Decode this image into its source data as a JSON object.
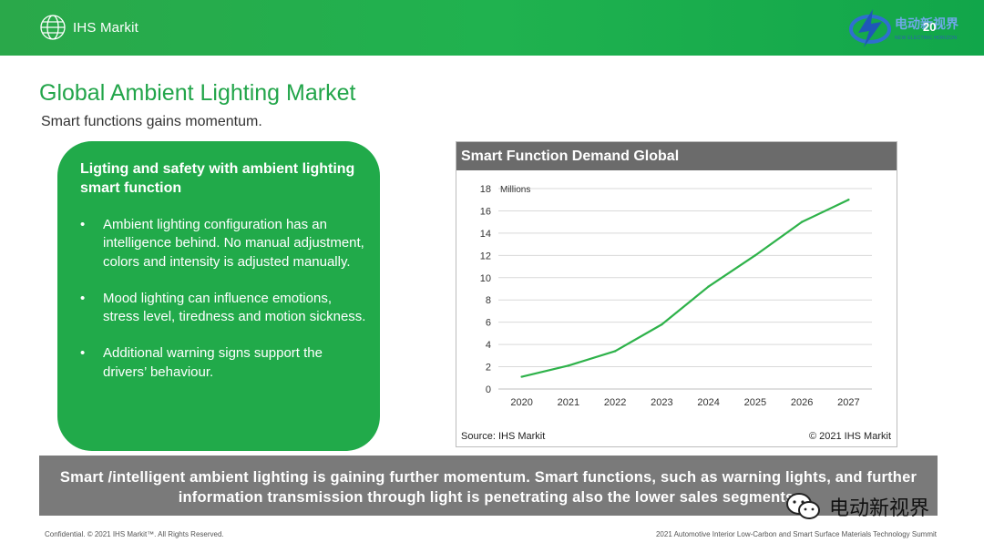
{
  "header": {
    "logo_text": "IHS Markit",
    "page_number": "20",
    "brand_name": "电动新视界",
    "brand_sub": "NEW ELECTRIC HORIZON"
  },
  "slide": {
    "title": "Global Ambient Lighting Market",
    "subtitle": "Smart functions gains momentum."
  },
  "green_box": {
    "title": "Ligting and safety with ambient lighting smart function",
    "bullets": [
      "Ambient lighting configuration has an intelligence behind. No manual adjustment, colors and intensity is adjusted manually.",
      "Mood lighting can influence emotions, stress level, tiredness and motion sickness.",
      "Additional warning signs support the drivers’ behaviour."
    ]
  },
  "chart_panel": {
    "source": "Source: IHS Markit",
    "copyright": "© 2021 IHS Markit"
  },
  "chart_data": {
    "type": "line",
    "title": "Smart Function Demand Global",
    "ylabel": "Millions",
    "xlabel": "",
    "x": [
      "2020",
      "2021",
      "2022",
      "2023",
      "2024",
      "2025",
      "2026",
      "2027"
    ],
    "yticks": [
      "0",
      "2",
      "4",
      "6",
      "8",
      "10",
      "12",
      "14",
      "16",
      "18"
    ],
    "ylim": [
      0,
      18
    ],
    "grid": true,
    "series": [
      {
        "name": "",
        "values": [
          1.1,
          2.1,
          3.4,
          5.8,
          9.2,
          12.0,
          15.0,
          17.0
        ],
        "color": "#2eb24a"
      }
    ]
  },
  "banner": {
    "text": "Smart /intelligent ambient lighting is gaining further momentum. Smart functions, such as warning lights, and further information transmission through light is penetrating also the lower sales segments."
  },
  "watermark": {
    "text": "电动新视界"
  },
  "footer": {
    "left": "Confidential. © 2021 IHS Markit™. All Rights Reserved.",
    "right": "2021 Automotive Interior Low-Carbon and Smart Surface Materials Technology Summit"
  },
  "colors": {
    "brand_green": "#21aa4a",
    "banner_gray": "#7a7a7a",
    "chart_header_gray": "#6b6b6b"
  }
}
